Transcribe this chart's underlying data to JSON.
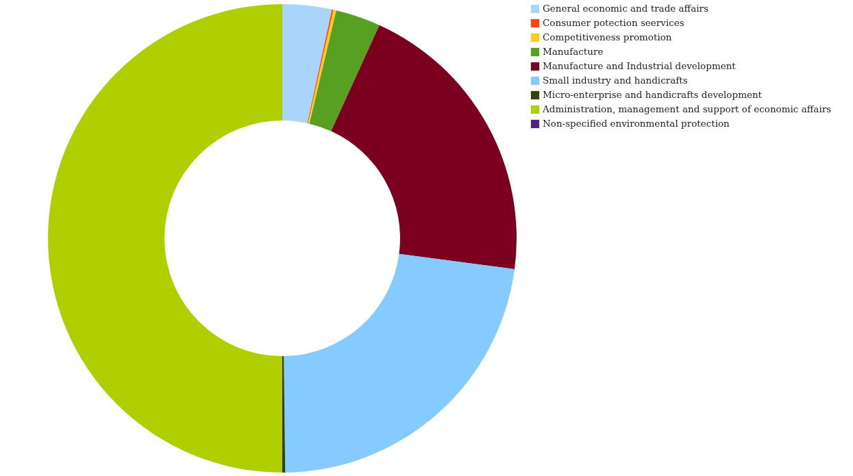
{
  "chart_data": {
    "type": "donut",
    "categories": [
      "General economic and trade affairs",
      "Consumer potection seervices",
      "Competitiveness promotion",
      "Manufacture",
      "Manufacture and Industrial development",
      " Small industry and handicrafts",
      "Micro-enterprise and handicrafts development",
      "Administration, management and support of economic affairs",
      "Non-specified environmental protection"
    ],
    "values": [
      3.4,
      0.1,
      0.2,
      3.1,
      20.3,
      22.7,
      0.2,
      50.0,
      0
    ],
    "colors": [
      "#a9d5fb",
      "#ff4411",
      "#ffcc1a",
      "#57a021",
      "#7b0020",
      "#85cbff",
      "#334010",
      "#b0cf00",
      "#4f2380"
    ],
    "legend": "right"
  }
}
